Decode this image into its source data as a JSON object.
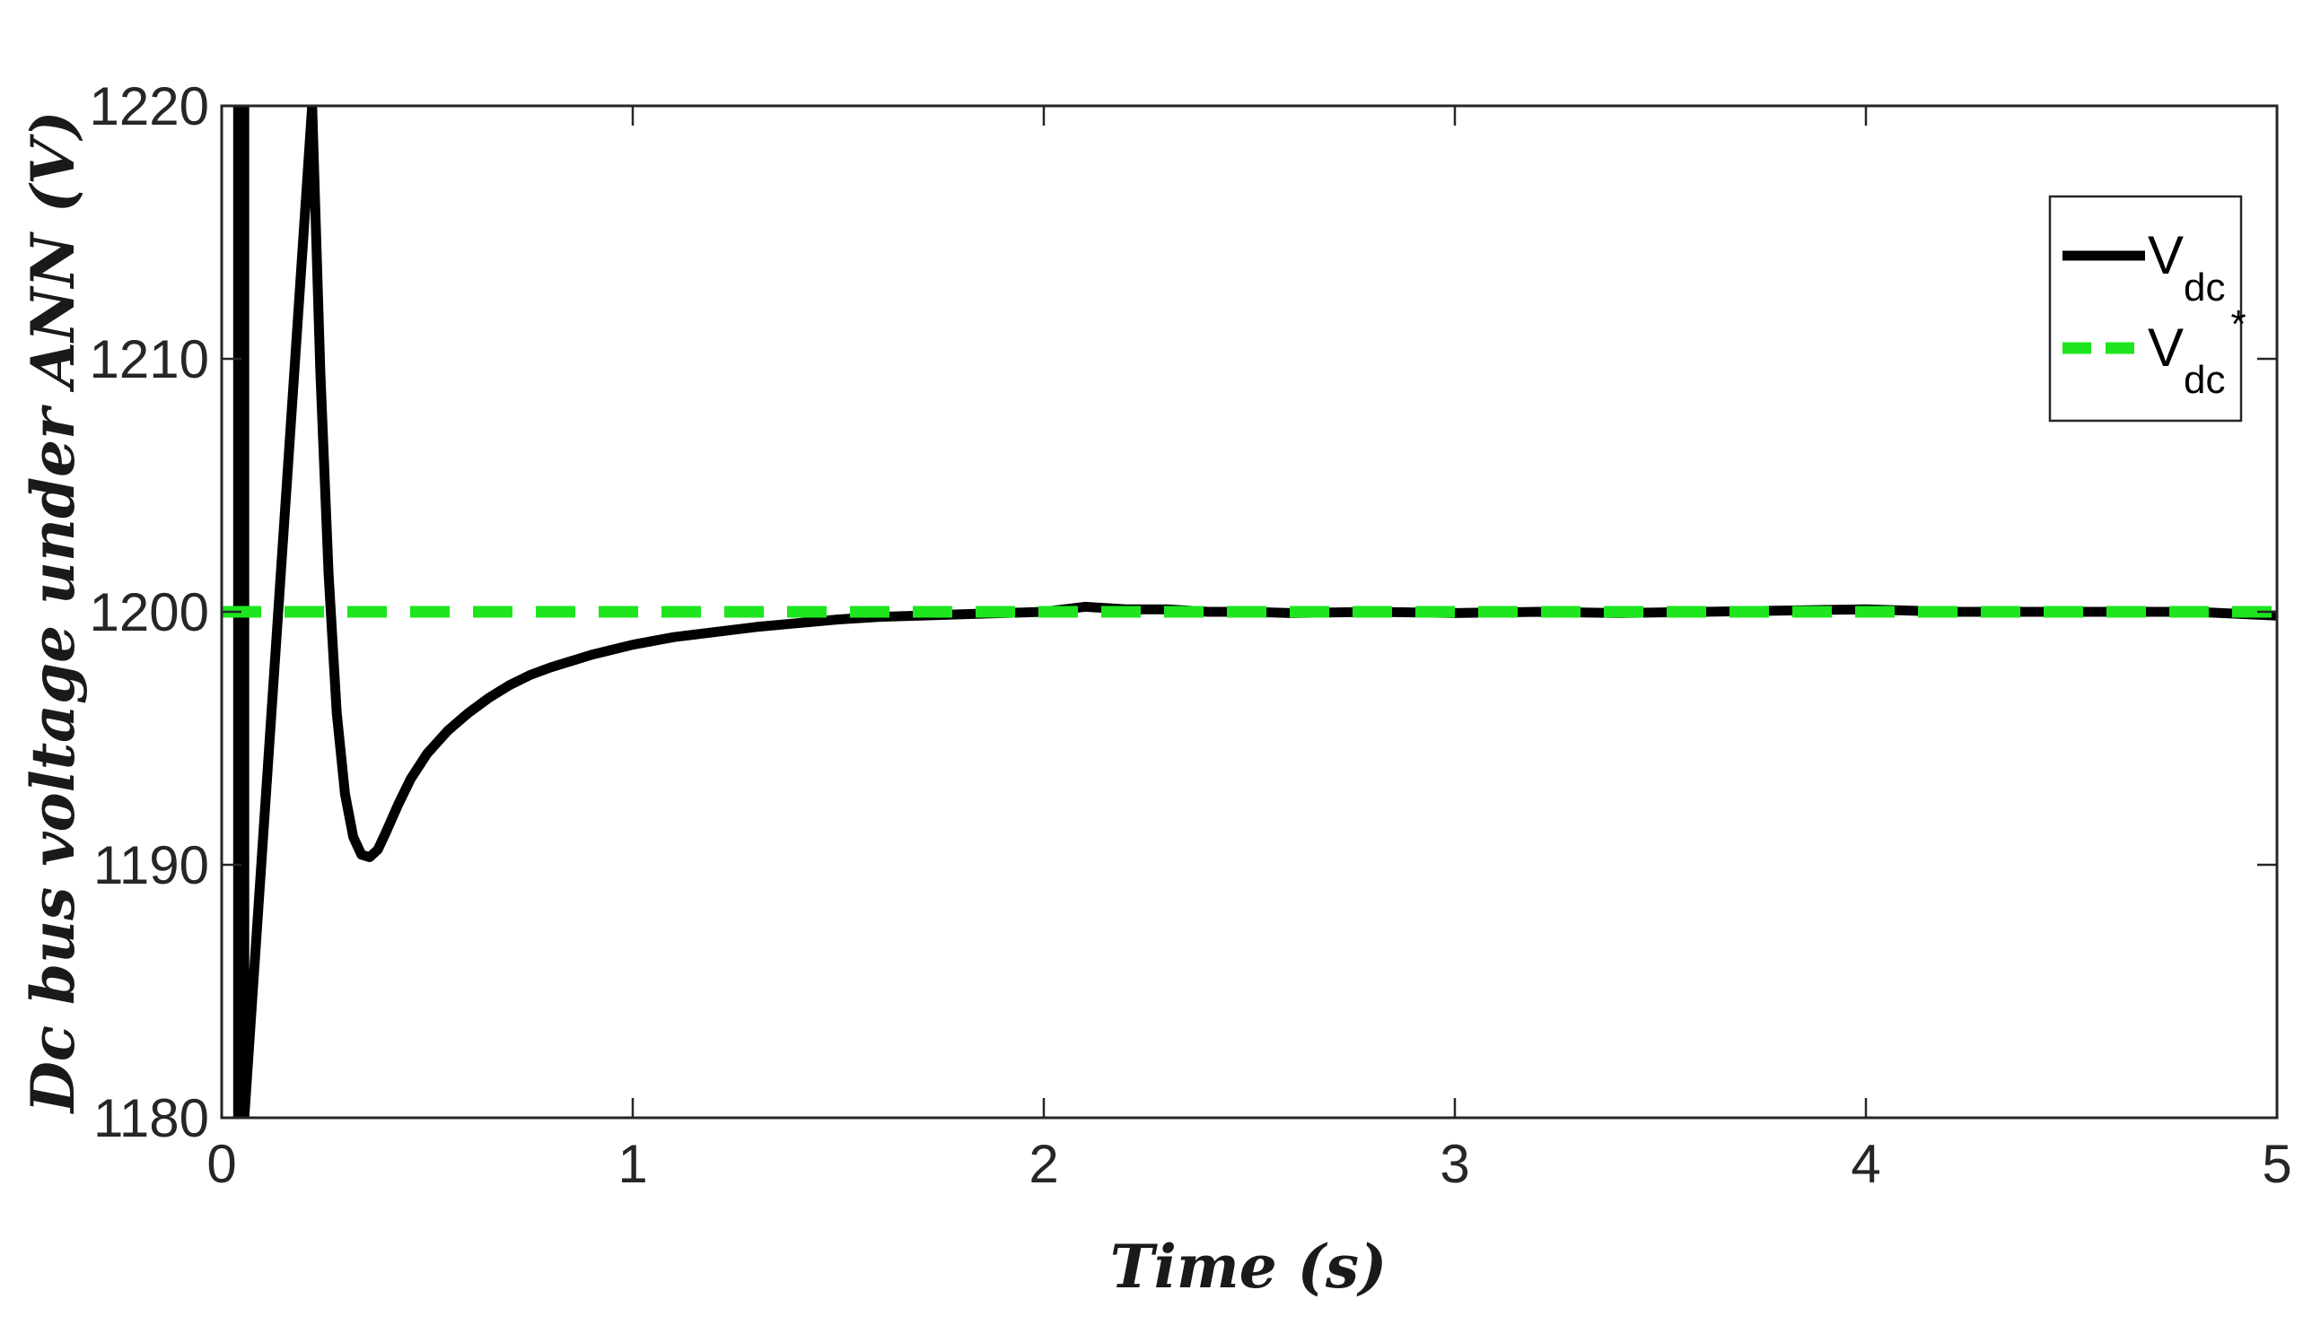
{
  "chart_data": {
    "type": "line",
    "title": "",
    "xlabel": "Time (s)",
    "ylabel": "Dc bus voltage under ANN (V)",
    "xlim": [
      0,
      5
    ],
    "ylim": [
      1180,
      1220
    ],
    "xticks": [
      0,
      1,
      2,
      3,
      4,
      5
    ],
    "xtick_labels": [
      "0",
      "1",
      "2",
      "3",
      "4",
      "5"
    ],
    "yticks": [
      1180,
      1190,
      1200,
      1210,
      1220
    ],
    "ytick_labels": [
      "1180",
      "1190",
      "1200",
      "1210",
      "1220"
    ],
    "grid": false,
    "legend_position": "top-right",
    "series": [
      {
        "name": "Vdc",
        "legend_main": "V",
        "legend_sub": "dc",
        "legend_sup": "",
        "color": "#000000",
        "style": "solid",
        "x": [
          0.04,
          0.04,
          0.055,
          0.055,
          0.22,
          0.24,
          0.26,
          0.28,
          0.3,
          0.32,
          0.34,
          0.36,
          0.38,
          0.4,
          0.43,
          0.46,
          0.5,
          0.55,
          0.6,
          0.65,
          0.7,
          0.75,
          0.8,
          0.9,
          1.0,
          1.1,
          1.2,
          1.3,
          1.4,
          1.5,
          1.6,
          1.7,
          1.8,
          1.9,
          2.0,
          2.1,
          2.2,
          2.3,
          2.4,
          2.5,
          2.6,
          2.8,
          3.0,
          3.2,
          3.4,
          3.6,
          3.8,
          4.0,
          4.2,
          4.4,
          4.6,
          4.8,
          5.0
        ],
        "y": [
          1180,
          1220,
          1220,
          1180,
          1220,
          1209.5,
          1201.5,
          1196,
          1192.8,
          1191.1,
          1190.4,
          1190.3,
          1190.6,
          1191.3,
          1192.4,
          1193.4,
          1194.4,
          1195.3,
          1196.0,
          1196.6,
          1197.1,
          1197.5,
          1197.8,
          1198.3,
          1198.7,
          1199.0,
          1199.2,
          1199.4,
          1199.55,
          1199.7,
          1199.8,
          1199.85,
          1199.9,
          1199.95,
          1200.0,
          1200.2,
          1200.1,
          1200.1,
          1200.0,
          1200.0,
          1199.95,
          1200.0,
          1199.95,
          1200.0,
          1199.95,
          1200.0,
          1200.05,
          1200.1,
          1200.0,
          1200.0,
          1200.0,
          1200.0,
          1199.85
        ]
      },
      {
        "name": "Vdc*",
        "legend_main": "V",
        "legend_sub": "dc",
        "legend_sup": "*",
        "color": "#1ee61e",
        "style": "dashed",
        "x": [
          0,
          5
        ],
        "y": [
          1200,
          1200
        ]
      }
    ]
  }
}
